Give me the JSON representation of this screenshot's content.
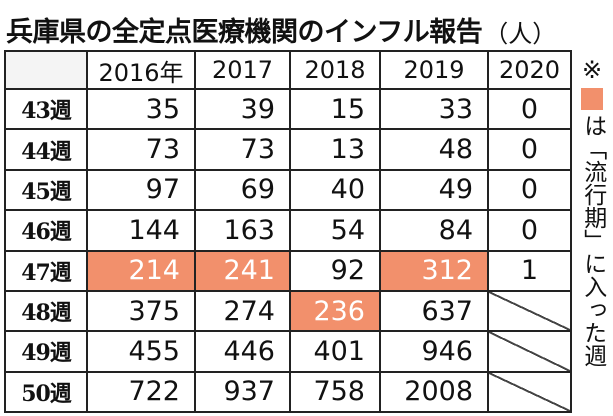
{
  "title": {
    "main": "兵庫県の全定点医療機関のインフル報告",
    "unit": "（人）"
  },
  "colors": {
    "epidemic_highlight": "#f2906c"
  },
  "table": {
    "columns": [
      "2016年",
      "2017",
      "2018",
      "2019",
      "2020"
    ],
    "rows": [
      {
        "week": "43週",
        "values": [
          "35",
          "39",
          "15",
          "33",
          "0"
        ]
      },
      {
        "week": "44週",
        "values": [
          "73",
          "73",
          "13",
          "48",
          "0"
        ]
      },
      {
        "week": "45週",
        "values": [
          "97",
          "69",
          "40",
          "49",
          "0"
        ]
      },
      {
        "week": "46週",
        "values": [
          "144",
          "163",
          "54",
          "84",
          "0"
        ]
      },
      {
        "week": "47週",
        "values": [
          "214",
          "241",
          "92",
          "312",
          "1"
        ]
      },
      {
        "week": "48週",
        "values": [
          "375",
          "274",
          "236",
          "637",
          ""
        ]
      },
      {
        "week": "49週",
        "values": [
          "455",
          "446",
          "401",
          "946",
          ""
        ]
      },
      {
        "week": "50週",
        "values": [
          "722",
          "937",
          "758",
          "2008",
          ""
        ]
      }
    ],
    "epidemic_start": {
      "2016年": "47週",
      "2017": "47週",
      "2018": "48週",
      "2019": "47週"
    }
  },
  "note": {
    "mark": "※",
    "text": "は「流行期」に入った週"
  }
}
